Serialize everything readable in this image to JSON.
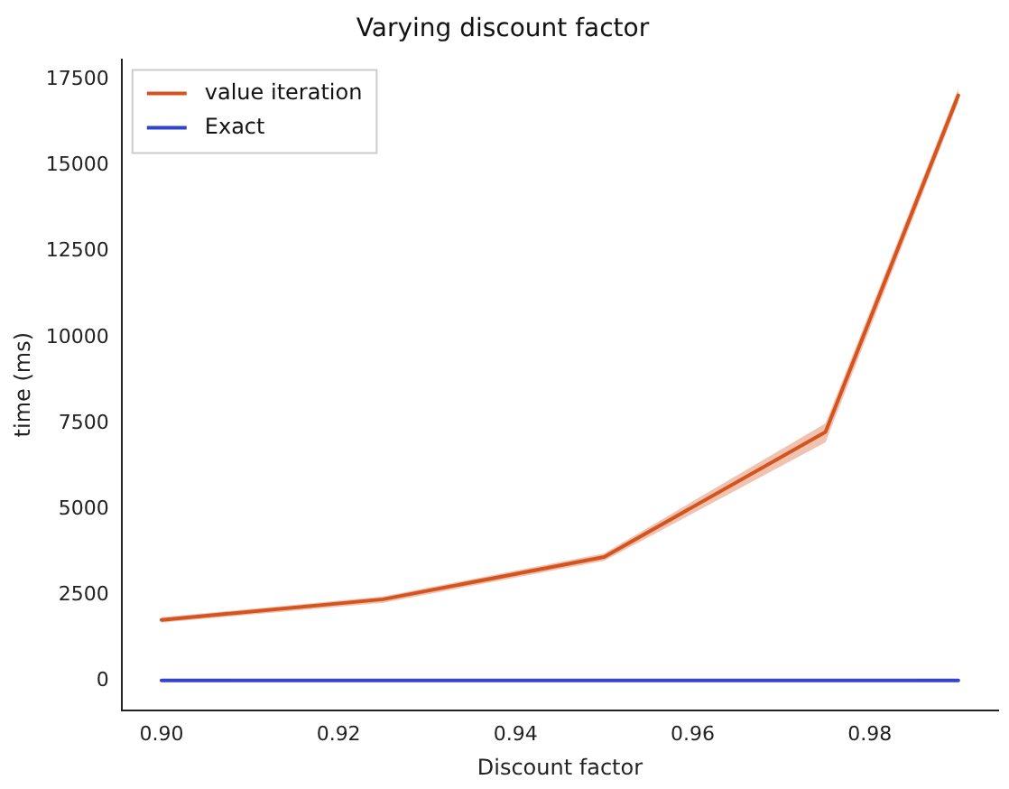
{
  "chart_data": {
    "type": "line",
    "title": "Varying discount factor",
    "xlabel": "Discount factor",
    "ylabel": "time (ms)",
    "x": [
      0.9,
      0.925,
      0.95,
      0.975,
      0.99
    ],
    "series": [
      {
        "name": "value iteration",
        "color": "#d4541f",
        "values": [
          1780,
          2380,
          3610,
          7250,
          17050
        ],
        "lower": [
          1700,
          2280,
          3500,
          6950,
          16850
        ],
        "upper": [
          1860,
          2460,
          3720,
          7500,
          17250
        ]
      },
      {
        "name": "Exact",
        "color": "#3344cc",
        "values": [
          20,
          20,
          20,
          20,
          20
        ]
      }
    ],
    "xlim": [
      0.8955,
      0.9945
    ],
    "xticks": [
      {
        "value": 0.9,
        "label": "0.90"
      },
      {
        "value": 0.92,
        "label": "0.92"
      },
      {
        "value": 0.94,
        "label": "0.94"
      },
      {
        "value": 0.96,
        "label": "0.96"
      },
      {
        "value": 0.98,
        "label": "0.98"
      }
    ],
    "ylim": [
      -850,
      18100
    ],
    "yticks": [
      0,
      2500,
      5000,
      7500,
      10000,
      12500,
      15000,
      17500
    ],
    "grid": false,
    "legend": "top left",
    "marker": "none",
    "line_style": "solid"
  }
}
